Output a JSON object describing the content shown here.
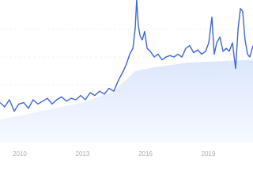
{
  "chart_data": {
    "type": "line",
    "x": [
      2009.06,
      2009.28,
      2009.51,
      2009.74,
      2009.96,
      2010.19,
      2010.42,
      2010.64,
      2010.87,
      2011.09,
      2011.32,
      2011.55,
      2011.77,
      2012.0,
      2012.23,
      2012.45,
      2012.68,
      2012.91,
      2013.13,
      2013.36,
      2013.58,
      2013.81,
      2014.04,
      2014.26,
      2014.49,
      2014.72,
      2014.94,
      2015.09,
      2015.25,
      2015.4,
      2015.51,
      2015.58,
      2015.66,
      2015.74,
      2015.85,
      2015.96,
      2016.08,
      2016.23,
      2016.42,
      2016.6,
      2016.79,
      2016.98,
      2017.17,
      2017.36,
      2017.55,
      2017.74,
      2017.92,
      2018.11,
      2018.3,
      2018.49,
      2018.68,
      2018.87,
      2019.02,
      2019.17,
      2019.28,
      2019.4,
      2019.55,
      2019.7,
      2019.85,
      2020.0,
      2020.15,
      2020.3,
      2020.42,
      2020.53,
      2020.64,
      2020.75,
      2020.87,
      2020.98,
      2021.13
    ],
    "series": [
      {
        "color": "#3d63dd",
        "values": [
          28,
          25,
          30,
          22,
          27,
          28,
          24,
          30,
          27,
          29,
          31,
          27,
          30,
          32,
          29,
          31,
          30,
          33,
          30,
          35,
          33,
          36,
          34,
          38,
          36,
          44,
          50,
          55,
          62,
          66,
          80,
          100,
          82,
          75,
          72,
          78,
          66,
          64,
          60,
          62,
          58,
          60,
          61,
          60,
          62,
          60,
          66,
          68,
          63,
          65,
          62,
          64,
          70,
          88,
          62,
          70,
          74,
          64,
          66,
          64,
          70,
          52,
          80,
          94,
          92,
          72,
          62,
          60,
          68
        ]
      },
      {
        "color": "#e3ecfd",
        "area": true,
        "x": [
          2009.06,
          2011,
          2013,
          2014.5,
          2015.5,
          2016.5,
          2018,
          2019.5,
          2021.13
        ],
        "values": [
          16,
          22,
          28,
          36,
          50,
          53,
          56,
          57,
          58
        ]
      }
    ],
    "xlim": [
      2009.06,
      2021.13
    ],
    "xticks": [
      2010,
      2013,
      2016,
      2019
    ],
    "ylim": [
      0,
      100
    ]
  }
}
